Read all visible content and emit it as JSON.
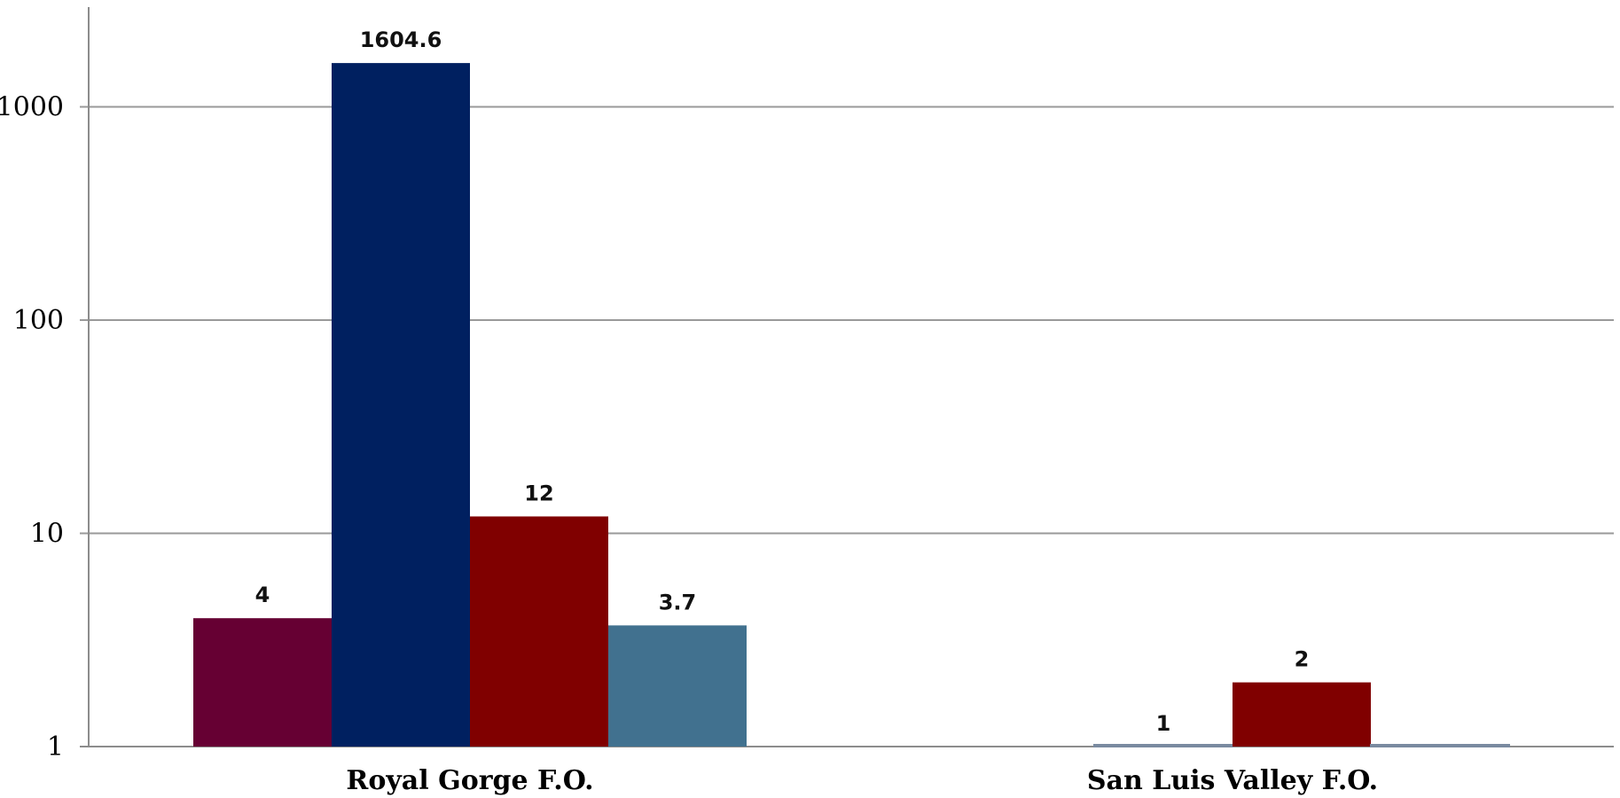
{
  "chart_data": {
    "type": "bar",
    "scale": "log",
    "ylim": [
      1,
      2800
    ],
    "yticks": [
      1,
      10,
      100,
      1000
    ],
    "ytick_labels": [
      "1",
      "10",
      "100",
      "1000"
    ],
    "grid": true,
    "categories": [
      "Royal Gorge F.O.",
      "San Luis Valley F.O."
    ],
    "series": [
      {
        "color": "#660033",
        "values": [
          4,
          null
        ],
        "labels": [
          "4",
          ""
        ]
      },
      {
        "color": "#002060",
        "values": [
          1604.6,
          1
        ],
        "labels": [
          "1604.6",
          "1"
        ]
      },
      {
        "color": "#800000",
        "values": [
          12,
          2
        ],
        "labels": [
          "12",
          "2"
        ]
      },
      {
        "color": "#41718F",
        "values": [
          3.7,
          1
        ],
        "labels": [
          "3.7",
          ""
        ]
      }
    ]
  }
}
